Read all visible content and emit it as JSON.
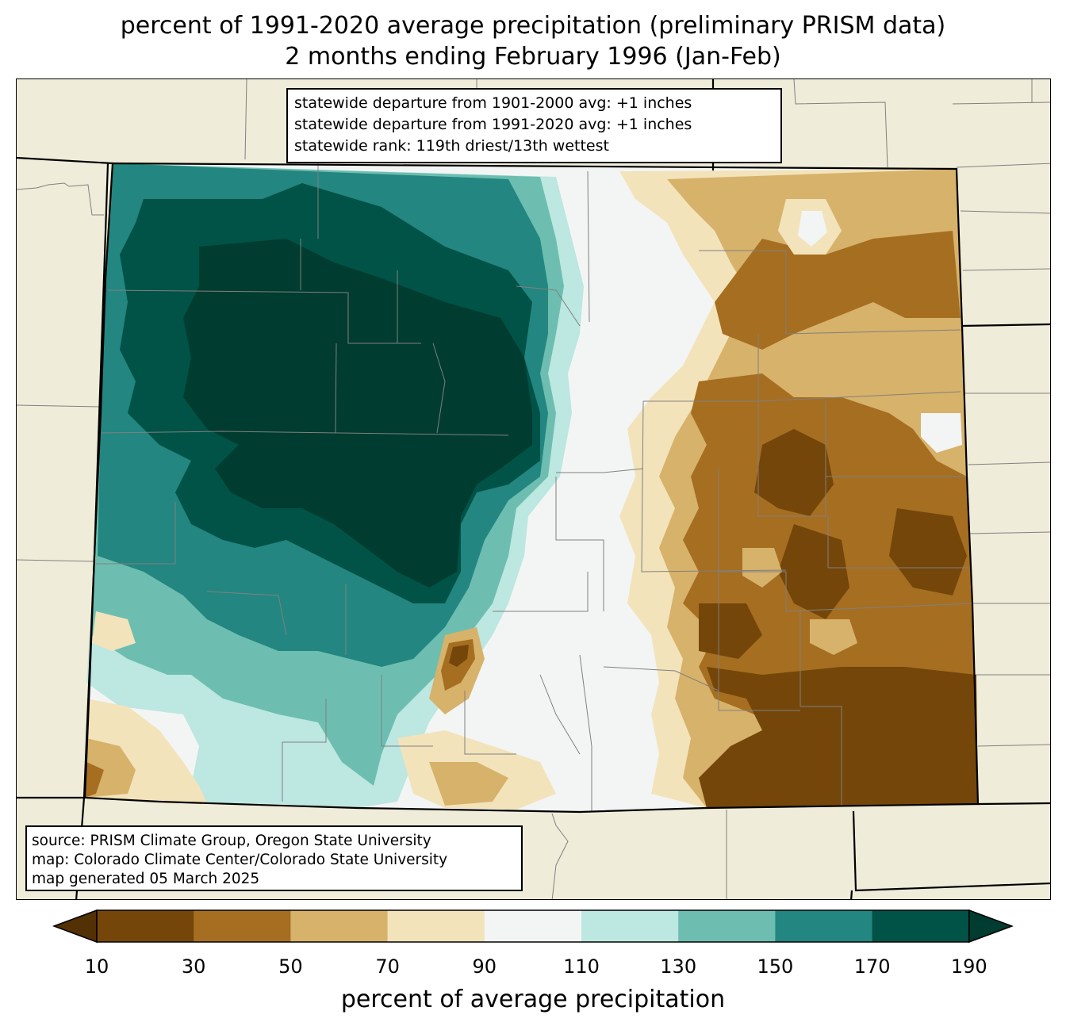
{
  "title": {
    "line1": "percent of 1991-2020 average precipitation (preliminary PRISM data)",
    "line2": "2 months ending February 1996 (Jan-Feb)"
  },
  "stats": {
    "line1": "statewide departure from 1901-2000 avg: +1 inches",
    "line2": "statewide departure from 1991-2020 avg: +1 inches",
    "line3": "statewide rank: 119th driest/13th wettest"
  },
  "source": {
    "line1": "source: PRISM Climate Group, Oregon State University",
    "line2": "map: Colorado Climate Center/Colorado State University",
    "line3": "map generated 05 March 2025"
  },
  "colorbar": {
    "label": "percent of average precipitation",
    "ticks": [
      "10",
      "30",
      "50",
      "70",
      "90",
      "110",
      "130",
      "150",
      "170",
      "190"
    ],
    "bins": [
      {
        "range": "<10",
        "color": "#543005"
      },
      {
        "range": "10-30",
        "color": "#744609"
      },
      {
        "range": "30-50",
        "color": "#a66e21"
      },
      {
        "range": "50-70",
        "color": "#d7b26b"
      },
      {
        "range": "70-90",
        "color": "#f3e3bb"
      },
      {
        "range": "90-110",
        "color": "#f3f5f4"
      },
      {
        "range": "110-130",
        "color": "#bde7e1"
      },
      {
        "range": "130-150",
        "color": "#6dbeb0"
      },
      {
        "range": "150-170",
        "color": "#238680"
      },
      {
        "range": "170-190",
        "color": "#005346"
      },
      {
        "range": ">190",
        "color": "#003c30"
      }
    ]
  },
  "map_colors": {
    "background": "#efecd9",
    "state_border": "#000000",
    "county_border": "#808080"
  }
}
